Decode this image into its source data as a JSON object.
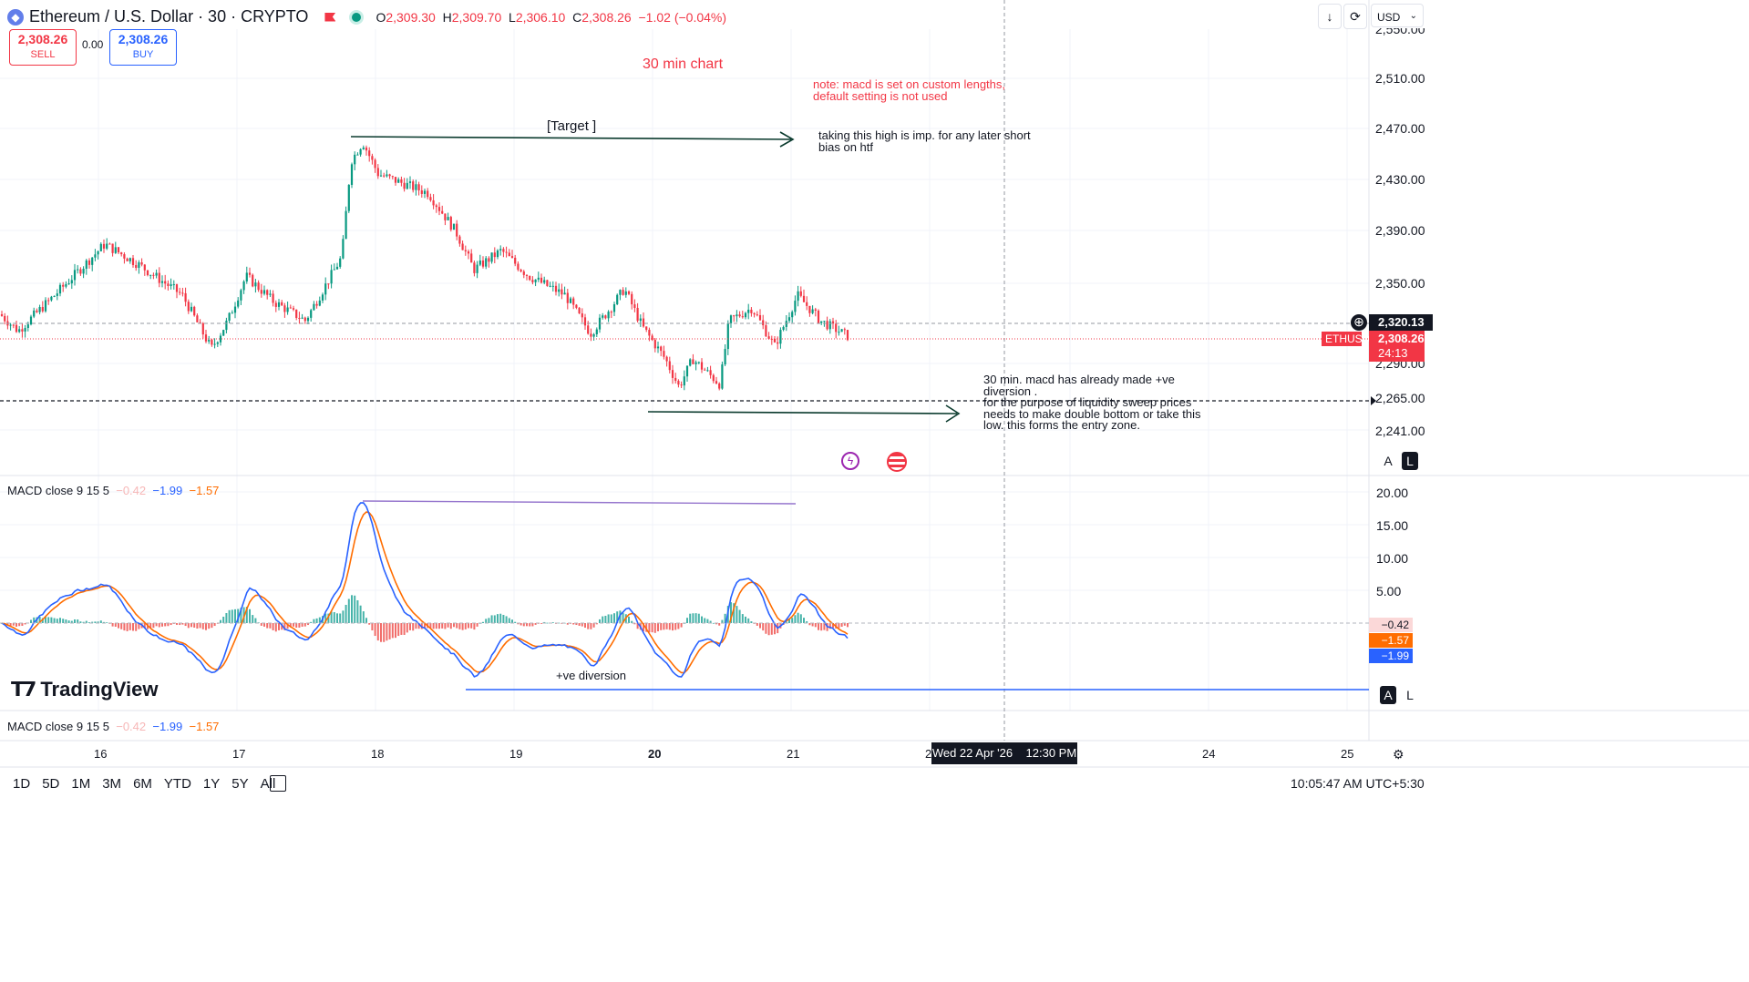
{
  "header": {
    "title": "Ethereum / U.S. Dollar · 30 · CRYPTO",
    "ohlc": [
      {
        "k": "O",
        "v": "2,309.30"
      },
      {
        "k": "H",
        "v": "2,309.70"
      },
      {
        "k": "L",
        "v": "2,306.10"
      },
      {
        "k": "C",
        "v": "2,308.26"
      }
    ],
    "change": "−1.02 (−0.04%)"
  },
  "trade": {
    "sell_price": "2,308.26",
    "sell_label": "SELL",
    "spread": "0.00",
    "buy_price": "2,308.26",
    "buy_label": "BUY"
  },
  "top_right": {
    "currency": "USD"
  },
  "annotations": {
    "chart_label": "30 min chart",
    "macd_note": "note: macd is set on custom lengths,\ndefault setting is not used",
    "target": "[Target ]",
    "high_note": "taking this high is imp. for any later short\nbias on htf",
    "entry_note": "30 min. macd has already made +ve\ndiversion .\nfor the purpose of liquidity sweep prices\nneeds to make double bottom or take this\nlow. this forms the entry zone.",
    "diversion": "+ve diversion"
  },
  "price_axis": {
    "ticks": [
      "2,510.00",
      "2,470.00",
      "2,430.00",
      "2,390.00",
      "2,350.00",
      "2,290.00",
      "2,265.00",
      "2,241.00"
    ],
    "top_partial": "2,550.00",
    "crosshair_price": "2,320.13",
    "symbol_tag": "ETHUSD",
    "last_price": "2,308.26",
    "countdown": "24:13",
    "mode_a": "A",
    "mode_l": "L"
  },
  "macd": {
    "legend_name": "MACD close 9 15 5",
    "hist_value": "−0.42",
    "macd_value": "−1.99",
    "signal_value": "−1.57",
    "ticks": [
      "20.00",
      "15.00",
      "10.00",
      "5.00"
    ],
    "tag_hist": "−0.42",
    "tag_signal": "−1.57",
    "tag_macd": "−1.99"
  },
  "brand": {
    "logo_text": "TradingView"
  },
  "time_axis": {
    "labels": [
      "16",
      "17",
      "18",
      "19",
      "20",
      "21",
      "24",
      "25"
    ],
    "hidden_partial": "2",
    "crosshair_label": "Wed 22 Apr '26    12:30 PM"
  },
  "bottom_bar": {
    "ranges": [
      "1D",
      "5D",
      "1M",
      "3M",
      "6M",
      "YTD",
      "1Y",
      "5Y",
      "All"
    ],
    "clock": "10:05:47 AM UTC+5:30"
  },
  "colors": {
    "up": "#089981",
    "down": "#f23645",
    "macd": "#2962ff",
    "signal": "#ff6d00",
    "hist_up": "#26a69a",
    "hist_down": "#ef5350",
    "annotation": "#f23645",
    "arrow": "#0b3b2e"
  },
  "chart_data": {
    "type": "candlestick",
    "ylim": [
      2200,
      2560
    ],
    "macd_ylim": [
      -7,
      21
    ],
    "series": [
      {
        "name": "ETHUSD",
        "keypoints": [
          [
            0,
            2325
          ],
          [
            20,
            2312
          ],
          [
            60,
            2340
          ],
          [
            115,
            2380
          ],
          [
            150,
            2365
          ],
          [
            200,
            2340
          ],
          [
            232,
            2298
          ],
          [
            250,
            2320
          ],
          [
            270,
            2355
          ],
          [
            300,
            2335
          ],
          [
            335,
            2320
          ],
          [
            355,
            2345
          ],
          [
            375,
            2370
          ],
          [
            385,
            2445
          ],
          [
            398,
            2460
          ],
          [
            415,
            2435
          ],
          [
            470,
            2420
          ],
          [
            500,
            2390
          ],
          [
            520,
            2360
          ],
          [
            550,
            2375
          ],
          [
            580,
            2355
          ],
          [
            620,
            2340
          ],
          [
            648,
            2310
          ],
          [
            670,
            2330
          ],
          [
            685,
            2345
          ],
          [
            705,
            2315
          ],
          [
            730,
            2290
          ],
          [
            745,
            2268
          ],
          [
            760,
            2290
          ],
          [
            790,
            2270
          ],
          [
            800,
            2320
          ],
          [
            825,
            2330
          ],
          [
            850,
            2300
          ],
          [
            875,
            2340
          ],
          [
            900,
            2320
          ],
          [
            930,
            2308
          ]
        ]
      }
    ]
  }
}
